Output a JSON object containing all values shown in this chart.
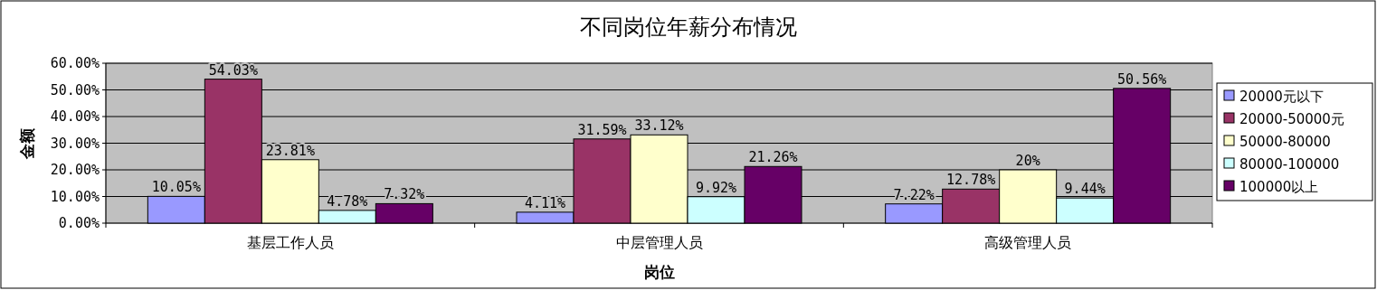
{
  "chart_data": {
    "type": "bar",
    "title": "不同岗位年薪分布情况",
    "xlabel": "岗位",
    "ylabel": "金额",
    "categories": [
      "基层工作人员",
      "中层管理人员",
      "高级管理人员"
    ],
    "series": [
      {
        "name": "20000元以下",
        "color": "#9999ff",
        "values": [
          10.05,
          4.11,
          7.22
        ],
        "value_labels": [
          "10.05%",
          "4.11%",
          "7.22%"
        ]
      },
      {
        "name": "20000-50000元",
        "color": "#993366",
        "values": [
          54.03,
          31.59,
          12.78
        ],
        "value_labels": [
          "54.03%",
          "31.59%",
          "12.78%"
        ]
      },
      {
        "name": "50000-80000",
        "color": "#ffffcc",
        "values": [
          23.81,
          33.12,
          20
        ],
        "value_labels": [
          "23.81%",
          "33.12%",
          "20%"
        ]
      },
      {
        "name": "80000-100000",
        "color": "#ccffff",
        "values": [
          4.78,
          9.92,
          9.44
        ],
        "value_labels": [
          "4.78%",
          "9.92%",
          "9.44%"
        ]
      },
      {
        "name": "100000以上",
        "color": "#660066",
        "values": [
          7.32,
          21.26,
          50.56
        ],
        "value_labels": [
          "7.32%",
          "21.26%",
          "50.56%"
        ]
      }
    ],
    "ylim": [
      0,
      60
    ],
    "yticks": [
      {
        "value": 0,
        "label": "0.00%"
      },
      {
        "value": 10,
        "label": "10.00%"
      },
      {
        "value": 20,
        "label": "20.00%"
      },
      {
        "value": 30,
        "label": "30.00%"
      },
      {
        "value": 40,
        "label": "40.00%"
      },
      {
        "value": 50,
        "label": "50.00%"
      },
      {
        "value": 60,
        "label": "60.00%"
      }
    ],
    "grid": "y",
    "legend": "right"
  }
}
